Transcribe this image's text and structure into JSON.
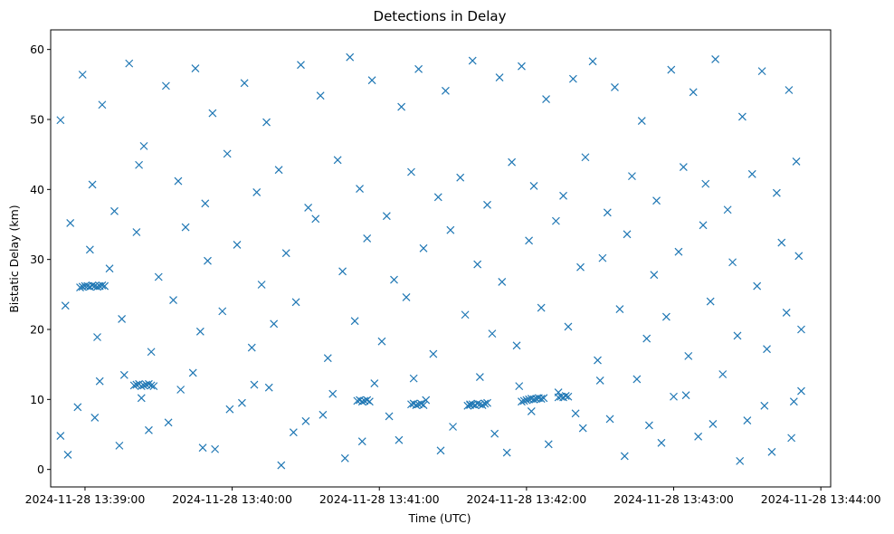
{
  "chart_data": {
    "type": "scatter",
    "title": "Detections in Delay",
    "xlabel": "Time (UTC)",
    "ylabel": "Bistatic Delay (km)",
    "xlim": [
      "2024-11-28 13:38:46",
      "2024-11-28 13:44:04"
    ],
    "ylim": [
      -2.5,
      62.8
    ],
    "x_ticks": [
      "2024-11-28 13:39:00",
      "2024-11-28 13:40:00",
      "2024-11-28 13:41:00",
      "2024-11-28 13:42:00",
      "2024-11-28 13:43:00",
      "2024-11-28 13:44:00"
    ],
    "y_ticks": [
      0,
      10,
      20,
      30,
      40,
      50,
      60
    ],
    "marker": "x",
    "color": "#1f77b4",
    "grid": false,
    "series": [
      {
        "x": [
          "13:38:59",
          "13:39:07",
          "13:39:18",
          "13:39:24",
          "13:39:33",
          "13:39:45",
          "13:39:52",
          "13:40:05",
          "13:40:14",
          "13:40:28",
          "13:40:36",
          "13:40:48",
          "13:40:57",
          "13:41:09",
          "13:41:16",
          "13:41:27",
          "13:41:38",
          "13:41:49",
          "13:41:58",
          "13:42:08",
          "13:42:19",
          "13:42:27",
          "13:42:36",
          "13:42:47",
          "13:42:59",
          "13:43:08",
          "13:43:17",
          "13:43:28",
          "13:43:36",
          "13:43:47",
          "13:38:50",
          "13:39:03",
          "13:39:12",
          "13:39:22",
          "13:39:38",
          "13:39:49",
          "13:39:58",
          "13:40:10",
          "13:40:19",
          "13:40:31",
          "13:40:43",
          "13:40:52",
          "13:41:03",
          "13:41:13",
          "13:41:24",
          "13:41:33",
          "13:41:44",
          "13:41:54",
          "13:42:03",
          "13:42:15",
          "13:42:24",
          "13:42:33",
          "13:42:43",
          "13:42:53",
          "13:43:04",
          "13:43:13",
          "13:43:22",
          "13:43:32",
          "13:43:42",
          "13:43:50"
        ],
        "y": [
          56.4,
          52.1,
          58.0,
          46.2,
          54.8,
          57.3,
          50.9,
          55.2,
          49.6,
          57.8,
          53.4,
          58.9,
          55.6,
          51.8,
          57.2,
          54.1,
          58.4,
          56.0,
          57.6,
          52.9,
          55.8,
          58.3,
          54.6,
          49.8,
          57.1,
          53.9,
          58.6,
          50.4,
          56.9,
          54.2,
          49.9,
          40.7,
          36.9,
          43.5,
          41.2,
          38.0,
          45.1,
          39.6,
          42.8,
          37.4,
          44.2,
          40.1,
          36.2,
          42.5,
          38.9,
          41.7,
          37.8,
          43.9,
          40.5,
          39.1,
          44.6,
          36.7,
          41.9,
          38.4,
          43.2,
          40.8,
          37.1,
          42.2,
          39.5,
          44.0
        ]
      },
      {
        "x": [
          "13:38:54",
          "13:39:02",
          "13:39:10",
          "13:39:21",
          "13:39:30",
          "13:39:41",
          "13:39:50",
          "13:40:02",
          "13:40:12",
          "13:40:22",
          "13:40:34",
          "13:40:45",
          "13:40:55",
          "13:41:06",
          "13:41:18",
          "13:41:29",
          "13:41:40",
          "13:41:50",
          "13:42:01",
          "13:42:12",
          "13:42:22",
          "13:42:31",
          "13:42:41",
          "13:42:52",
          "13:43:02",
          "13:43:12",
          "13:43:24",
          "13:43:34",
          "13:43:44",
          "13:43:51",
          "13:38:52",
          "13:39:05",
          "13:39:15",
          "13:39:27",
          "13:39:36",
          "13:39:47",
          "13:39:56",
          "13:40:08",
          "13:40:17",
          "13:40:26",
          "13:40:39",
          "13:40:50",
          "13:41:01",
          "13:41:11",
          "13:41:22",
          "13:41:35",
          "13:41:46",
          "13:41:56",
          "13:42:06",
          "13:42:17",
          "13:42:29",
          "13:42:38",
          "13:42:49",
          "13:42:57",
          "13:43:06",
          "13:43:15",
          "13:43:26",
          "13:43:38",
          "13:43:46",
          "13:43:52"
        ],
        "y": [
          35.2,
          31.4,
          28.7,
          33.9,
          27.5,
          34.6,
          29.8,
          32.1,
          26.4,
          30.9,
          35.8,
          28.3,
          33.0,
          27.1,
          31.6,
          34.2,
          29.3,
          26.8,
          32.7,
          35.5,
          28.9,
          30.2,
          33.6,
          27.8,
          31.1,
          34.9,
          29.6,
          26.2,
          32.4,
          30.5,
          23.4,
          18.9,
          21.5,
          16.8,
          24.2,
          19.7,
          22.6,
          17.4,
          20.8,
          23.9,
          15.9,
          21.2,
          18.3,
          24.6,
          16.5,
          22.1,
          19.4,
          17.7,
          23.1,
          20.4,
          15.6,
          22.9,
          18.7,
          21.8,
          16.2,
          24.0,
          19.1,
          17.2,
          22.4,
          20.0
        ]
      },
      {
        "x": [
          "13:38:50",
          "13:38:57",
          "13:39:06",
          "13:39:14",
          "13:39:23",
          "13:39:34",
          "13:39:44",
          "13:39:53",
          "13:40:04",
          "13:40:15",
          "13:40:25",
          "13:40:37",
          "13:40:46",
          "13:40:58",
          "13:41:08",
          "13:41:19",
          "13:41:30",
          "13:41:41",
          "13:41:52",
          "13:42:02",
          "13:42:13",
          "13:42:23",
          "13:42:34",
          "13:42:45",
          "13:42:55",
          "13:43:05",
          "13:43:16",
          "13:43:27",
          "13:43:37",
          "13:43:48",
          "13:38:53",
          "13:39:04",
          "13:39:16",
          "13:39:26",
          "13:39:39",
          "13:39:48",
          "13:39:59",
          "13:40:09",
          "13:40:20",
          "13:40:30",
          "13:40:41",
          "13:40:53",
          "13:41:04",
          "13:41:14",
          "13:41:25",
          "13:41:37",
          "13:41:47",
          "13:41:57",
          "13:42:09",
          "13:42:20",
          "13:42:30",
          "13:42:40",
          "13:42:50",
          "13:43:00",
          "13:43:10",
          "13:43:20",
          "13:43:30",
          "13:43:40",
          "13:43:49",
          "13:43:52"
        ],
        "y": [
          4.8,
          8.9,
          12.6,
          3.4,
          10.2,
          6.7,
          13.8,
          2.9,
          9.5,
          11.7,
          5.3,
          7.8,
          1.6,
          12.3,
          4.2,
          9.9,
          6.1,
          13.2,
          2.4,
          8.3,
          11.0,
          5.9,
          7.2,
          12.9,
          3.8,
          10.6,
          6.5,
          1.2,
          9.1,
          4.5,
          2.1,
          7.4,
          13.5,
          5.6,
          11.4,
          3.1,
          8.6,
          12.1,
          0.6,
          6.9,
          10.8,
          4.0,
          7.6,
          13.0,
          2.7,
          9.3,
          5.1,
          11.9,
          3.6,
          8.0,
          12.7,
          1.9,
          6.3,
          10.4,
          4.7,
          13.6,
          7.0,
          2.5,
          9.7,
          11.2
        ]
      },
      {
        "x": [
          "13:38:58",
          "13:38:59",
          "13:39:00",
          "13:39:01",
          "13:39:02",
          "13:39:03",
          "13:39:04",
          "13:39:05",
          "13:39:06",
          "13:39:07",
          "13:39:08",
          "13:39:20",
          "13:39:21",
          "13:39:22",
          "13:39:23",
          "13:39:24",
          "13:39:25",
          "13:39:26",
          "13:39:27",
          "13:39:28",
          "13:40:51",
          "13:40:52",
          "13:40:53",
          "13:40:54",
          "13:40:55",
          "13:40:56",
          "13:41:13",
          "13:41:14",
          "13:41:15",
          "13:41:16",
          "13:41:17",
          "13:41:18",
          "13:41:36",
          "13:41:37",
          "13:41:38",
          "13:41:39",
          "13:41:40",
          "13:41:41",
          "13:41:42",
          "13:41:43",
          "13:41:44",
          "13:41:58",
          "13:41:59",
          "13:42:00",
          "13:42:01",
          "13:42:02",
          "13:42:03",
          "13:42:04",
          "13:42:05",
          "13:42:06",
          "13:42:07",
          "13:42:13",
          "13:42:14",
          "13:42:15",
          "13:42:16",
          "13:42:17"
        ],
        "y": [
          26.0,
          26.1,
          26.2,
          26.2,
          26.1,
          26.3,
          26.2,
          26.1,
          26.2,
          26.3,
          26.2,
          12.0,
          12.1,
          12.2,
          11.9,
          12.0,
          12.1,
          12.2,
          12.0,
          11.9,
          9.8,
          9.9,
          9.7,
          9.8,
          9.9,
          9.7,
          9.3,
          9.4,
          9.2,
          9.3,
          9.4,
          9.2,
          9.1,
          9.2,
          9.3,
          9.2,
          9.4,
          9.3,
          9.2,
          9.4,
          9.5,
          9.7,
          9.8,
          9.9,
          10.0,
          10.1,
          10.0,
          10.1,
          10.2,
          10.1,
          10.2,
          10.3,
          10.4,
          10.3,
          10.5,
          10.4
        ]
      }
    ]
  }
}
